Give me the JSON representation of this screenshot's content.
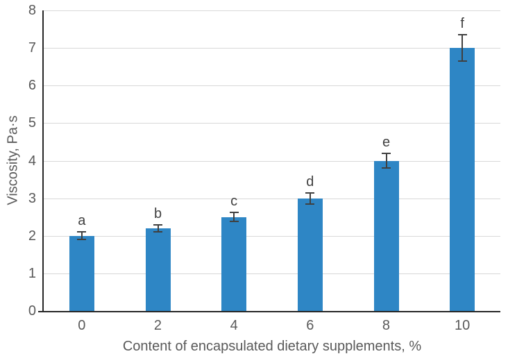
{
  "chart_data": {
    "type": "bar",
    "title": "",
    "categories": [
      "0",
      "2",
      "4",
      "6",
      "8",
      "10"
    ],
    "values": [
      2.0,
      2.2,
      2.5,
      3.0,
      4.0,
      7.0
    ],
    "error_bars": [
      0.1,
      0.1,
      0.12,
      0.15,
      0.2,
      0.35
    ],
    "point_labels": [
      "a",
      "b",
      "c",
      "d",
      "e",
      "f"
    ],
    "xlabel": "Content of encapsulated dietary supplements, %",
    "ylabel": "Viscosity, Pa·s",
    "ylim": [
      0,
      8
    ],
    "ytick_interval": 1,
    "yticks": [
      "0",
      "1",
      "2",
      "3",
      "4",
      "5",
      "6",
      "7",
      "8"
    ],
    "grid": "horizontal",
    "legend": "none",
    "colors": {
      "bar": "#2E86C5",
      "error_bar": "#404040",
      "gridline": "#D8D8D8",
      "axis_line": "#262626",
      "tick_text": "#595959",
      "axis_title_text": "#595959",
      "point_label_text": "#404040",
      "background": "#FFFFFF"
    }
  }
}
